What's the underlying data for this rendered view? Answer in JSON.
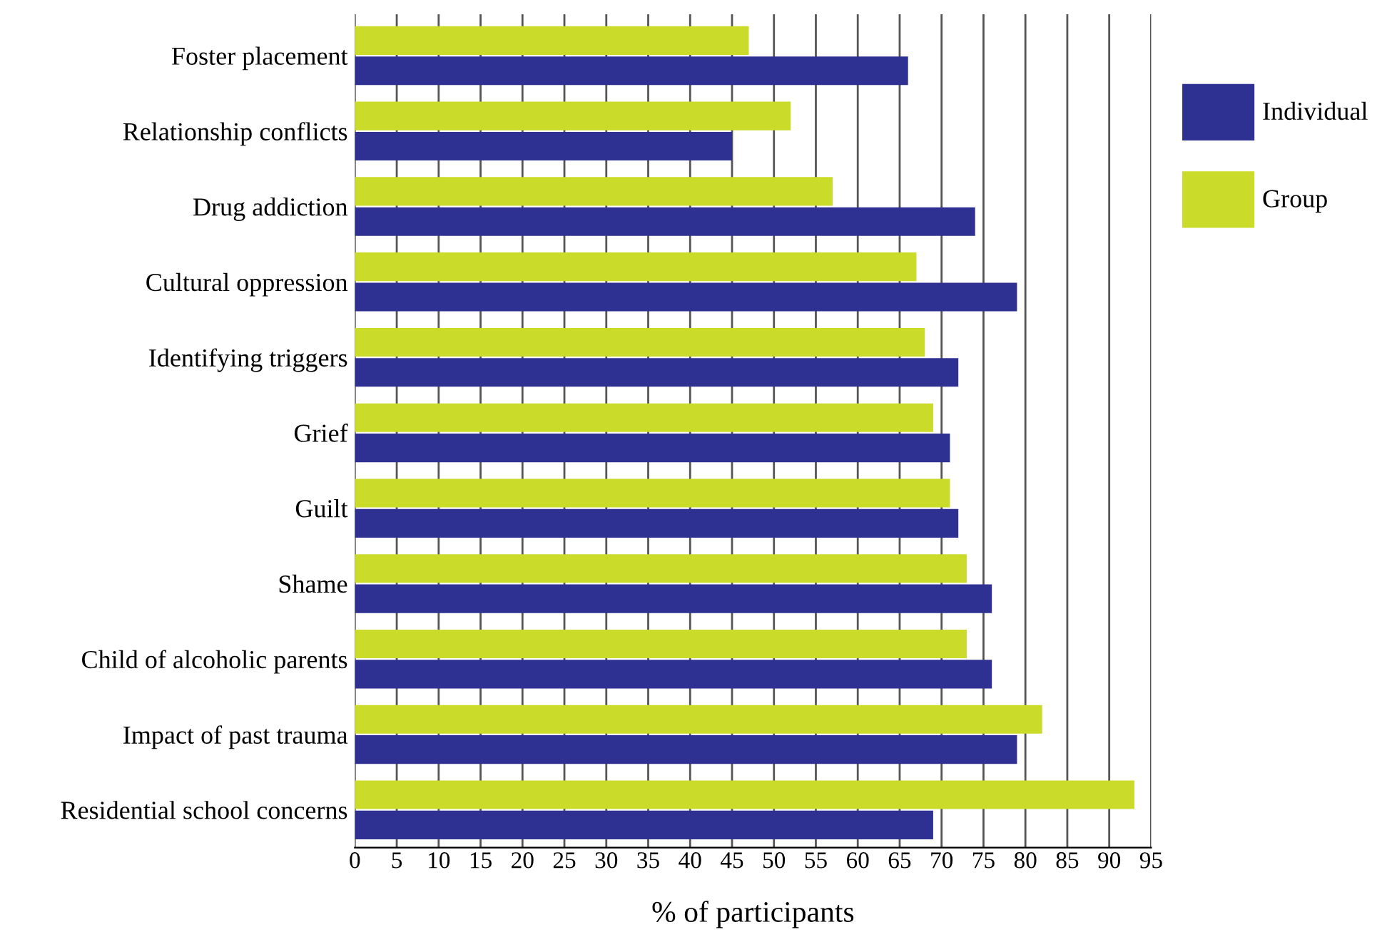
{
  "chart_data": {
    "type": "bar",
    "orientation": "horizontal",
    "xlabel": "% of participants",
    "categories": [
      "Foster placement",
      "Relationship conflicts",
      "Drug addiction",
      "Cultural oppression",
      "Identifying triggers",
      "Grief",
      "Guilt",
      "Shame",
      "Child of alcoholic parents",
      "Impact of past trauma",
      "Residential school concerns"
    ],
    "series": [
      {
        "name": "Individual",
        "color": "#2e3192",
        "values": [
          66,
          45,
          74,
          79,
          72,
          71,
          72,
          76,
          76,
          79,
          69
        ]
      },
      {
        "name": "Group",
        "color": "#cbdb2a",
        "values": [
          47,
          52,
          57,
          67,
          68,
          69,
          71,
          73,
          73,
          82,
          93
        ]
      }
    ],
    "xlim": [
      0,
      95
    ],
    "xticks": [
      0,
      5,
      10,
      15,
      20,
      25,
      30,
      35,
      40,
      45,
      50,
      55,
      60,
      65,
      70,
      75,
      80,
      85,
      90,
      95
    ],
    "grid": "x",
    "legend": "right"
  }
}
